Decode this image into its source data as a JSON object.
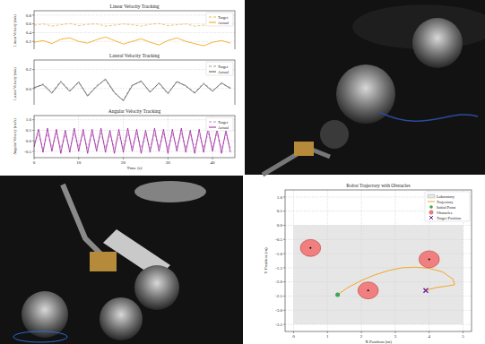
{
  "chart_data": [
    {
      "type": "line",
      "title": "Linear Velocity Tracking",
      "y_label": "Linear Velocity (m/s)",
      "x": [
        0,
        2,
        4,
        6,
        8,
        10,
        12,
        14,
        16,
        18,
        20,
        22,
        24,
        26,
        28,
        30,
        32,
        34,
        36,
        38,
        40,
        42,
        44
      ],
      "series": [
        {
          "name": "Target",
          "color": "#f2b34a",
          "line_style": "dashed",
          "values": [
            0.57,
            0.6,
            0.55,
            0.58,
            0.61,
            0.56,
            0.59,
            0.6,
            0.55,
            0.57,
            0.6,
            0.58,
            0.55,
            0.59,
            0.61,
            0.56,
            0.58,
            0.6,
            0.55,
            0.57,
            0.59,
            0.6,
            0.57
          ]
        },
        {
          "name": "Actual",
          "color": "#f5a000",
          "line_style": "solid",
          "values": [
            0.18,
            0.22,
            0.15,
            0.25,
            0.28,
            0.2,
            0.16,
            0.24,
            0.3,
            0.22,
            0.14,
            0.2,
            0.26,
            0.18,
            0.12,
            0.22,
            0.28,
            0.2,
            0.15,
            0.1,
            0.18,
            0.22,
            0.16
          ]
        }
      ],
      "xlim": [
        0,
        45
      ],
      "ylim": [
        0,
        0.9
      ],
      "yticks": [
        {
          "value": 0,
          "label": "0.0"
        },
        0.2,
        0.4,
        0.6,
        0.8
      ],
      "grid": true,
      "legend": "upper right",
      "tick_labels": "y"
    },
    {
      "type": "line",
      "title": "Lateral Velocity Tracking",
      "y_label": "Lateral Velocity (m/s)",
      "x": [
        0,
        2,
        4,
        6,
        8,
        10,
        12,
        14,
        16,
        18,
        20,
        22,
        24,
        26,
        28,
        30,
        32,
        34,
        36,
        38,
        40,
        42,
        44
      ],
      "series": [
        {
          "name": "Target",
          "color": "#9a9a9a",
          "line_style": "dashed",
          "values": [
            0,
            0.05,
            -0.04,
            0.08,
            -0.02,
            0.06,
            -0.07,
            0.03,
            0.09,
            -0.05,
            -0.12,
            0.04,
            0.07,
            -0.03,
            0.05,
            -0.06,
            0.08,
            0.02,
            -0.04,
            0.06,
            -0.02,
            0.05,
            0.01
          ]
        },
        {
          "name": "Actual",
          "color": "#555555",
          "line_style": "solid",
          "values": [
            0.01,
            0.04,
            -0.05,
            0.07,
            -0.03,
            0.07,
            -0.08,
            0.02,
            0.1,
            -0.04,
            -0.13,
            0.03,
            0.08,
            -0.04,
            0.06,
            -0.05,
            0.07,
            0.03,
            -0.05,
            0.05,
            -0.03,
            0.06,
            0.0
          ]
        }
      ],
      "xlim": [
        0,
        45
      ],
      "ylim": [
        -0.2,
        0.3
      ],
      "yticks": [
        -0.2,
        {
          "value": 0,
          "label": "0.0"
        },
        0.2
      ],
      "grid": true,
      "legend": "upper right",
      "tick_labels": "y"
    },
    {
      "type": "line",
      "title": "Angular Velocity Tracking",
      "x_label": "Time (s)",
      "y_label": "Angular Velocity (rad/s)",
      "x": [
        0,
        1,
        2,
        3,
        4,
        5,
        6,
        7,
        8,
        9,
        10,
        11,
        12,
        13,
        14,
        15,
        16,
        17,
        18,
        19,
        20,
        21,
        22,
        23,
        24,
        25,
        26,
        27,
        28,
        29,
        30,
        31,
        32,
        33,
        34,
        35,
        36,
        37,
        38,
        39,
        40,
        41,
        42,
        43,
        44
      ],
      "series": [
        {
          "name": "Target",
          "color": "#c48ac4",
          "line_style": "dashed",
          "values": [
            -0.1,
            0.3,
            -0.35,
            0.35,
            -0.3,
            0.35,
            -0.35,
            0.3,
            -0.35,
            0.35,
            -0.3,
            0.35,
            -0.35,
            0.35,
            -0.3,
            0.35,
            -0.35,
            0.3,
            -0.35,
            0.3,
            -0.35,
            0.35,
            -0.3,
            0.35,
            -0.35,
            0.3,
            -0.35,
            0.35,
            -0.3,
            0.35,
            -0.35,
            0.35,
            -0.3,
            0.35,
            -0.35,
            0.3,
            -0.35,
            0.3,
            -0.35,
            0.35,
            -0.3,
            0.35,
            -0.35,
            0.3,
            -0.35
          ]
        },
        {
          "name": "Actual",
          "color": "#9b1c9b",
          "line_style": "solid",
          "values": [
            -0.3,
            0.55,
            -0.55,
            0.6,
            -0.5,
            0.55,
            -0.6,
            0.5,
            -0.55,
            0.6,
            -0.5,
            0.55,
            -0.6,
            0.55,
            -0.5,
            0.6,
            -0.55,
            0.5,
            -0.6,
            0.55,
            -0.55,
            0.6,
            -0.5,
            0.55,
            -0.6,
            0.5,
            -0.55,
            0.6,
            -0.5,
            0.55,
            -0.6,
            0.55,
            -0.5,
            0.6,
            -0.55,
            0.5,
            -0.6,
            0.55,
            -0.55,
            0.6,
            -0.5,
            0.55,
            -0.6,
            0.5,
            -0.55
          ]
        }
      ],
      "xlim": [
        0,
        45
      ],
      "xticks": [
        0,
        10,
        20,
        30,
        40
      ],
      "ylim": [
        -0.8,
        1.2
      ],
      "yticks": [
        -0.5,
        {
          "value": 0,
          "label": "0.0"
        },
        0.5,
        {
          "value": 1,
          "label": "1.0"
        }
      ],
      "grid": true,
      "legend": "upper right"
    },
    {
      "type": "scatter",
      "title": "Robot Trajectory with Obstacles",
      "x_label": "X Position (m)",
      "y_label": "Y Position (m)",
      "series": [
        {
          "name": "Laboratory",
          "type": "rect",
          "color": "#e6e6e6",
          "x": [
            0,
            5
          ],
          "values": [
            -3.5,
            0
          ]
        },
        {
          "name": "Trajectory",
          "type": "line",
          "color": "#f5a623",
          "line_style": "solid",
          "x": [
            1.3,
            1.6,
            2.0,
            2.4,
            2.8,
            3.2,
            3.6,
            4.0,
            4.4,
            4.7,
            4.75,
            4.5,
            4.2,
            3.9
          ],
          "values": [
            -2.45,
            -2.2,
            -1.95,
            -1.75,
            -1.6,
            -1.5,
            -1.48,
            -1.52,
            -1.65,
            -1.9,
            -2.1,
            -2.15,
            -2.2,
            -2.3
          ]
        },
        {
          "name": "Initial Point",
          "type": "scatter",
          "color": "#3aa655",
          "marker": "circle",
          "x": [
            1.3
          ],
          "values": [
            -2.45
          ]
        },
        {
          "name": "Obstacles",
          "type": "circle",
          "color": "#f08080",
          "x": [
            0.5,
            4.0,
            2.2
          ],
          "values": [
            -0.8,
            -1.2,
            -2.3
          ],
          "radius": [
            0.3,
            0.3,
            0.3
          ]
        },
        {
          "name": "Target Position",
          "type": "scatter",
          "color": "#6a1b9a",
          "marker": "x",
          "x": [
            3.9
          ],
          "values": [
            -2.3
          ]
        }
      ],
      "xlim": [
        -0.25,
        5.25
      ],
      "xticks": [
        0,
        1,
        2,
        3,
        4,
        5
      ],
      "ylim": [
        -3.75,
        1.25
      ],
      "yticks": [
        {
          "value": 1,
          "label": "1.0"
        },
        0.5,
        {
          "value": 0,
          "label": "0.0"
        },
        -0.5,
        {
          "value": -1,
          "label": "-1.0"
        },
        -1.5,
        {
          "value": -2,
          "label": "-2.0"
        },
        -2.5,
        {
          "value": -3,
          "label": "-3.0"
        },
        -3.5
      ],
      "grid": true,
      "legend": "upper right"
    }
  ]
}
